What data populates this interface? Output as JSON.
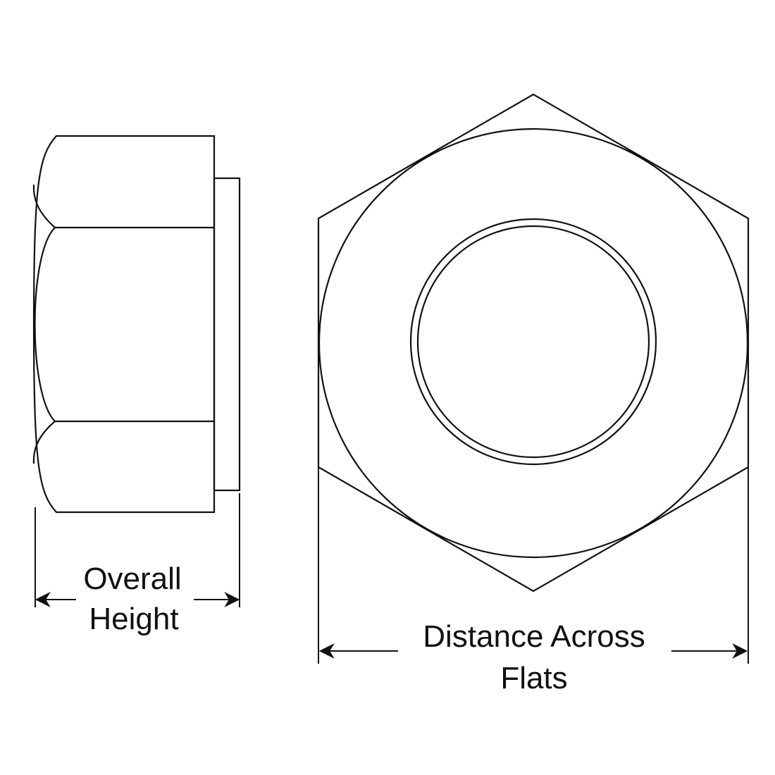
{
  "labels": {
    "overall_height_line1": "Overall",
    "overall_height_line2": "Height",
    "across_flats_line1": "Distance Across",
    "across_flats_line2": "Flats"
  },
  "colors": {
    "line": "#111111",
    "background": "#ffffff"
  }
}
